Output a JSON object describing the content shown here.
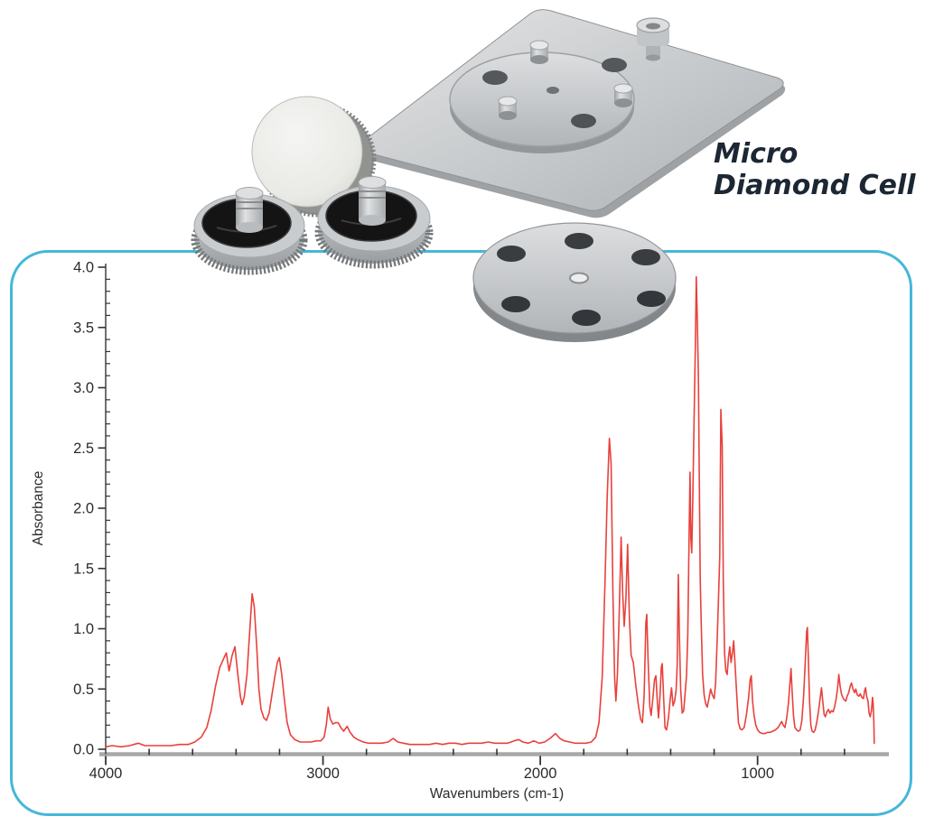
{
  "annotation": {
    "line1": "Micro",
    "line2": "Diamond Cell",
    "color": "#1c2733"
  },
  "panel": {
    "border_color": "#45b7d8"
  },
  "hardware_parts": [
    "baseplate",
    "mounted-disc",
    "hex-screw",
    "polished-disc",
    "thumbscrew-left",
    "thumbscrew-right",
    "six-hole-disc"
  ],
  "chart_data": {
    "type": "line",
    "title": "",
    "xlabel": "Wavenumbers (cm-1)",
    "ylabel": "Absorbance",
    "xlim": [
      4000,
      400
    ],
    "ylim": [
      0,
      4.0
    ],
    "x_axis_reversed": true,
    "x_ticks": [
      4000,
      3000,
      2000,
      1000
    ],
    "x_minor_step": 200,
    "y_ticks": [
      0.0,
      0.5,
      1.0,
      1.5,
      2.0,
      2.5,
      3.0,
      3.5,
      4.0
    ],
    "y_minor_step": 0.1,
    "grid": false,
    "legend": false,
    "line_color": "#e8413c",
    "axis_color": "#a8a8a8",
    "tick_color": "#333333",
    "label_color": "#2b2b2b",
    "series": [
      {
        "name": "absorbance-spectrum",
        "points": [
          [
            4000,
            0.02
          ],
          [
            3970,
            0.03
          ],
          [
            3930,
            0.02
          ],
          [
            3890,
            0.03
          ],
          [
            3850,
            0.05
          ],
          [
            3820,
            0.03
          ],
          [
            3780,
            0.03
          ],
          [
            3740,
            0.03
          ],
          [
            3700,
            0.03
          ],
          [
            3660,
            0.04
          ],
          [
            3620,
            0.04
          ],
          [
            3590,
            0.06
          ],
          [
            3560,
            0.1
          ],
          [
            3535,
            0.18
          ],
          [
            3515,
            0.32
          ],
          [
            3495,
            0.52
          ],
          [
            3475,
            0.68
          ],
          [
            3460,
            0.74
          ],
          [
            3445,
            0.8
          ],
          [
            3432,
            0.65
          ],
          [
            3418,
            0.78
          ],
          [
            3405,
            0.85
          ],
          [
            3392,
            0.62
          ],
          [
            3380,
            0.44
          ],
          [
            3372,
            0.37
          ],
          [
            3362,
            0.44
          ],
          [
            3350,
            0.62
          ],
          [
            3338,
            0.95
          ],
          [
            3326,
            1.29
          ],
          [
            3316,
            1.18
          ],
          [
            3305,
            0.85
          ],
          [
            3295,
            0.5
          ],
          [
            3285,
            0.33
          ],
          [
            3272,
            0.26
          ],
          [
            3260,
            0.24
          ],
          [
            3248,
            0.3
          ],
          [
            3235,
            0.45
          ],
          [
            3222,
            0.6
          ],
          [
            3210,
            0.72
          ],
          [
            3201,
            0.76
          ],
          [
            3190,
            0.62
          ],
          [
            3178,
            0.42
          ],
          [
            3165,
            0.22
          ],
          [
            3150,
            0.12
          ],
          [
            3130,
            0.08
          ],
          [
            3105,
            0.06
          ],
          [
            3080,
            0.06
          ],
          [
            3055,
            0.06
          ],
          [
            3030,
            0.07
          ],
          [
            3010,
            0.07
          ],
          [
            2995,
            0.1
          ],
          [
            2985,
            0.2
          ],
          [
            2976,
            0.35
          ],
          [
            2966,
            0.25
          ],
          [
            2955,
            0.21
          ],
          [
            2942,
            0.22
          ],
          [
            2930,
            0.22
          ],
          [
            2918,
            0.18
          ],
          [
            2905,
            0.15
          ],
          [
            2889,
            0.19
          ],
          [
            2875,
            0.14
          ],
          [
            2858,
            0.1
          ],
          [
            2840,
            0.08
          ],
          [
            2815,
            0.06
          ],
          [
            2790,
            0.05
          ],
          [
            2760,
            0.05
          ],
          [
            2730,
            0.05
          ],
          [
            2700,
            0.06
          ],
          [
            2677,
            0.09
          ],
          [
            2655,
            0.06
          ],
          [
            2630,
            0.05
          ],
          [
            2600,
            0.04
          ],
          [
            2570,
            0.04
          ],
          [
            2540,
            0.04
          ],
          [
            2510,
            0.04
          ],
          [
            2480,
            0.05
          ],
          [
            2450,
            0.04
          ],
          [
            2420,
            0.05
          ],
          [
            2390,
            0.05
          ],
          [
            2360,
            0.04
          ],
          [
            2330,
            0.05
          ],
          [
            2300,
            0.05
          ],
          [
            2270,
            0.05
          ],
          [
            2240,
            0.06
          ],
          [
            2210,
            0.05
          ],
          [
            2180,
            0.05
          ],
          [
            2150,
            0.05
          ],
          [
            2120,
            0.07
          ],
          [
            2100,
            0.08
          ],
          [
            2080,
            0.06
          ],
          [
            2055,
            0.05
          ],
          [
            2030,
            0.07
          ],
          [
            2005,
            0.05
          ],
          [
            1980,
            0.06
          ],
          [
            1955,
            0.09
          ],
          [
            1930,
            0.13
          ],
          [
            1910,
            0.09
          ],
          [
            1890,
            0.07
          ],
          [
            1865,
            0.06
          ],
          [
            1840,
            0.05
          ],
          [
            1815,
            0.05
          ],
          [
            1790,
            0.05
          ],
          [
            1765,
            0.06
          ],
          [
            1745,
            0.1
          ],
          [
            1730,
            0.22
          ],
          [
            1715,
            0.6
          ],
          [
            1702,
            1.4
          ],
          [
            1692,
            2.1
          ],
          [
            1682,
            2.58
          ],
          [
            1674,
            2.37
          ],
          [
            1666,
            1.3
          ],
          [
            1658,
            0.6
          ],
          [
            1652,
            0.4
          ],
          [
            1645,
            0.62
          ],
          [
            1637,
            1.1
          ],
          [
            1628,
            1.76
          ],
          [
            1621,
            1.3
          ],
          [
            1614,
            1.02
          ],
          [
            1606,
            1.25
          ],
          [
            1598,
            1.7
          ],
          [
            1590,
            1.1
          ],
          [
            1582,
            0.78
          ],
          [
            1572,
            0.72
          ],
          [
            1560,
            0.52
          ],
          [
            1548,
            0.36
          ],
          [
            1538,
            0.25
          ],
          [
            1530,
            0.22
          ],
          [
            1522,
            0.45
          ],
          [
            1514,
            1.05
          ],
          [
            1510,
            1.12
          ],
          [
            1504,
            0.75
          ],
          [
            1496,
            0.35
          ],
          [
            1490,
            0.28
          ],
          [
            1482,
            0.42
          ],
          [
            1474,
            0.58
          ],
          [
            1468,
            0.61
          ],
          [
            1461,
            0.38
          ],
          [
            1456,
            0.26
          ],
          [
            1449,
            0.45
          ],
          [
            1443,
            0.68
          ],
          [
            1439,
            0.71
          ],
          [
            1432,
            0.42
          ],
          [
            1426,
            0.18
          ],
          [
            1419,
            0.16
          ],
          [
            1410,
            0.26
          ],
          [
            1402,
            0.42
          ],
          [
            1396,
            0.51
          ],
          [
            1389,
            0.36
          ],
          [
            1382,
            0.4
          ],
          [
            1375,
            0.49
          ],
          [
            1370,
            0.7
          ],
          [
            1365,
            1.45
          ],
          [
            1360,
            0.95
          ],
          [
            1354,
            0.5
          ],
          [
            1347,
            0.3
          ],
          [
            1340,
            0.32
          ],
          [
            1333,
            0.48
          ],
          [
            1327,
            0.61
          ],
          [
            1321,
            0.95
          ],
          [
            1315,
            1.8
          ],
          [
            1311,
            2.3
          ],
          [
            1307,
            1.75
          ],
          [
            1303,
            1.63
          ],
          [
            1298,
            2.1
          ],
          [
            1292,
            2.75
          ],
          [
            1286,
            3.4
          ],
          [
            1282,
            3.92
          ],
          [
            1277,
            3.55
          ],
          [
            1272,
            3.06
          ],
          [
            1268,
            2.2
          ],
          [
            1264,
            1.4
          ],
          [
            1259,
            1.01
          ],
          [
            1253,
            0.62
          ],
          [
            1246,
            0.45
          ],
          [
            1239,
            0.38
          ],
          [
            1232,
            0.35
          ],
          [
            1224,
            0.42
          ],
          [
            1216,
            0.5
          ],
          [
            1208,
            0.45
          ],
          [
            1200,
            0.42
          ],
          [
            1193,
            0.55
          ],
          [
            1186,
            0.9
          ],
          [
            1180,
            1.25
          ],
          [
            1174,
            1.6
          ],
          [
            1169,
            2.82
          ],
          [
            1163,
            2.52
          ],
          [
            1158,
            1.4
          ],
          [
            1152,
            0.8
          ],
          [
            1146,
            0.65
          ],
          [
            1140,
            0.62
          ],
          [
            1134,
            0.76
          ],
          [
            1128,
            0.85
          ],
          [
            1122,
            0.72
          ],
          [
            1116,
            0.8
          ],
          [
            1110,
            0.9
          ],
          [
            1104,
            0.72
          ],
          [
            1096,
            0.45
          ],
          [
            1088,
            0.22
          ],
          [
            1080,
            0.17
          ],
          [
            1072,
            0.16
          ],
          [
            1062,
            0.18
          ],
          [
            1052,
            0.28
          ],
          [
            1042,
            0.42
          ],
          [
            1034,
            0.58
          ],
          [
            1029,
            0.61
          ],
          [
            1023,
            0.4
          ],
          [
            1016,
            0.28
          ],
          [
            1008,
            0.2
          ],
          [
            1000,
            0.16
          ],
          [
            990,
            0.14
          ],
          [
            978,
            0.13
          ],
          [
            966,
            0.13
          ],
          [
            954,
            0.14
          ],
          [
            942,
            0.14
          ],
          [
            930,
            0.15
          ],
          [
            918,
            0.16
          ],
          [
            906,
            0.18
          ],
          [
            896,
            0.21
          ],
          [
            889,
            0.23
          ],
          [
            882,
            0.2
          ],
          [
            874,
            0.18
          ],
          [
            866,
            0.26
          ],
          [
            858,
            0.38
          ],
          [
            850,
            0.58
          ],
          [
            846,
            0.67
          ],
          [
            841,
            0.48
          ],
          [
            835,
            0.28
          ],
          [
            828,
            0.18
          ],
          [
            820,
            0.16
          ],
          [
            812,
            0.15
          ],
          [
            804,
            0.16
          ],
          [
            796,
            0.24
          ],
          [
            788,
            0.45
          ],
          [
            780,
            0.75
          ],
          [
            774,
            0.98
          ],
          [
            771,
            1.01
          ],
          [
            766,
            0.72
          ],
          [
            761,
            0.4
          ],
          [
            755,
            0.2
          ],
          [
            749,
            0.15
          ],
          [
            742,
            0.14
          ],
          [
            735,
            0.16
          ],
          [
            728,
            0.22
          ],
          [
            720,
            0.31
          ],
          [
            712,
            0.42
          ],
          [
            706,
            0.51
          ],
          [
            700,
            0.4
          ],
          [
            694,
            0.29
          ],
          [
            688,
            0.27
          ],
          [
            681,
            0.31
          ],
          [
            674,
            0.33
          ],
          [
            667,
            0.3
          ],
          [
            660,
            0.32
          ],
          [
            652,
            0.31
          ],
          [
            645,
            0.36
          ],
          [
            638,
            0.42
          ],
          [
            631,
            0.52
          ],
          [
            626,
            0.62
          ],
          [
            620,
            0.52
          ],
          [
            614,
            0.46
          ],
          [
            608,
            0.43
          ],
          [
            601,
            0.41
          ],
          [
            594,
            0.4
          ],
          [
            588,
            0.44
          ],
          [
            581,
            0.47
          ],
          [
            574,
            0.52
          ],
          [
            568,
            0.55
          ],
          [
            561,
            0.5
          ],
          [
            554,
            0.47
          ],
          [
            548,
            0.5
          ],
          [
            541,
            0.45
          ],
          [
            534,
            0.44
          ],
          [
            527,
            0.46
          ],
          [
            520,
            0.43
          ],
          [
            513,
            0.42
          ],
          [
            507,
            0.49
          ],
          [
            503,
            0.51
          ],
          [
            498,
            0.44
          ],
          [
            492,
            0.4
          ],
          [
            487,
            0.3
          ],
          [
            482,
            0.27
          ],
          [
            476,
            0.32
          ],
          [
            471,
            0.43
          ],
          [
            468,
            0.38
          ],
          [
            465,
            0.22
          ],
          [
            463,
            0.05
          ]
        ]
      }
    ]
  }
}
